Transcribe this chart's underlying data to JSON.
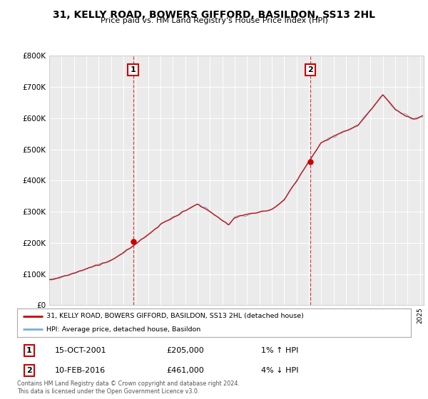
{
  "title": "31, KELLY ROAD, BOWERS GIFFORD, BASILDON, SS13 2HL",
  "subtitle": "Price paid vs. HM Land Registry's House Price Index (HPI)",
  "ylim": [
    0,
    800000
  ],
  "yticks": [
    0,
    100000,
    200000,
    300000,
    400000,
    500000,
    600000,
    700000,
    800000
  ],
  "ytick_labels": [
    "£0",
    "£100K",
    "£200K",
    "£300K",
    "£400K",
    "£500K",
    "£600K",
    "£700K",
    "£800K"
  ],
  "background_color": "#ffffff",
  "plot_bg_color": "#ebebeb",
  "grid_color": "#ffffff",
  "sale1_x": 2001.79,
  "sale1_y": 205000,
  "sale2_x": 2016.12,
  "sale2_y": 461000,
  "sale1_date": "15-OCT-2001",
  "sale1_price": "£205,000",
  "sale1_hpi": "1% ↑ HPI",
  "sale2_date": "10-FEB-2016",
  "sale2_price": "£461,000",
  "sale2_hpi": "4% ↓ HPI",
  "legend_line1": "31, KELLY ROAD, BOWERS GIFFORD, BASILDON, SS13 2HL (detached house)",
  "legend_line2": "HPI: Average price, detached house, Basildon",
  "footer": "Contains HM Land Registry data © Crown copyright and database right 2024.\nThis data is licensed under the Open Government Licence v3.0.",
  "line_color_red": "#cc0000",
  "line_color_blue": "#7bafd4",
  "dashed_line_color": "#cc0000",
  "xlim_start": 1995,
  "xlim_end": 2025.3
}
